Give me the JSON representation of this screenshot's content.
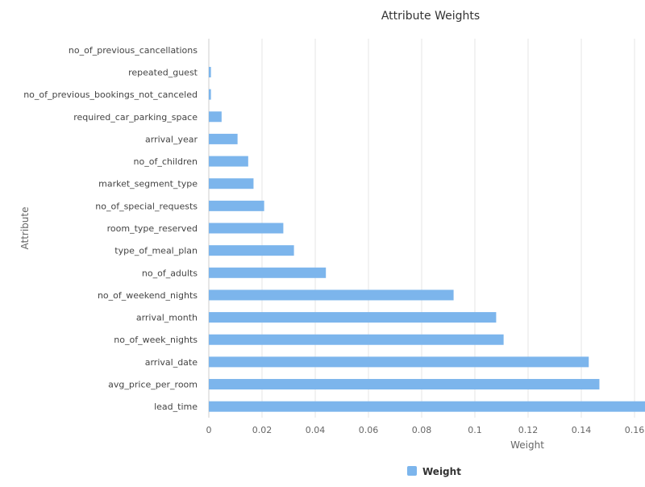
{
  "chart_data": {
    "type": "bar",
    "orientation": "horizontal",
    "title": "Attribute Weights",
    "xlabel": "Weight",
    "ylabel": "Attribute",
    "xlim": [
      0,
      0.165
    ],
    "x_ticks": [
      0,
      0.02,
      0.04,
      0.06,
      0.08,
      0.1,
      0.12,
      0.14,
      0.16
    ],
    "x_tick_labels": [
      "0",
      "0.02",
      "0.04",
      "0.06",
      "0.08",
      "0.1",
      "0.12",
      "0.14",
      "0.16"
    ],
    "grid": true,
    "legend_position": "bottom",
    "categories": [
      "no_of_previous_cancellations",
      "repeated_guest",
      "no_of_previous_bookings_not_canceled",
      "required_car_parking_space",
      "arrival_year",
      "no_of_children",
      "market_segment_type",
      "no_of_special_requests",
      "room_type_reserved",
      "type_of_meal_plan",
      "no_of_adults",
      "no_of_weekend_nights",
      "arrival_month",
      "no_of_week_nights",
      "arrival_date",
      "avg_price_per_room",
      "lead_time"
    ],
    "series": [
      {
        "name": "Weight",
        "color": "#7cb5ec",
        "values": [
          0.0,
          0.0008,
          0.0008,
          0.0048,
          0.0108,
          0.0148,
          0.0168,
          0.0208,
          0.028,
          0.032,
          0.044,
          0.092,
          0.108,
          0.1108,
          0.1428,
          0.1468,
          0.168
        ]
      }
    ]
  }
}
